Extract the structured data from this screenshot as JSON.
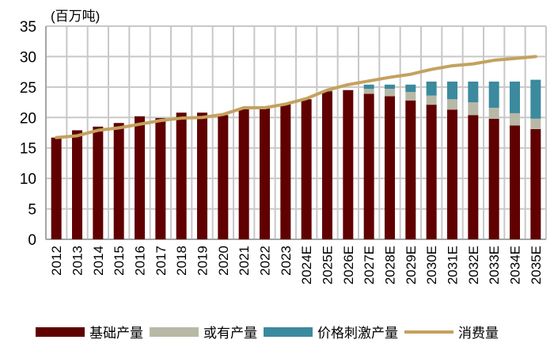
{
  "chart_data": {
    "type": "bar",
    "stacked": true,
    "unit_label": "(百万吨)",
    "categories": [
      "2012",
      "2013",
      "2014",
      "2015",
      "2016",
      "2017",
      "2018",
      "2019",
      "2020",
      "2021",
      "2022",
      "2023",
      "2024E",
      "2025E",
      "2026E",
      "2027E",
      "2028E",
      "2029E",
      "2030E",
      "2031E",
      "2032E",
      "2033E",
      "2034E",
      "2035E"
    ],
    "ylim": [
      0,
      35
    ],
    "yticks": [
      0,
      5,
      10,
      15,
      20,
      25,
      30,
      35
    ],
    "grid": true,
    "legend_position": "bottom",
    "series": [
      {
        "name": "基础产量",
        "type": "bar",
        "color": "#600000",
        "values": [
          16.7,
          17.9,
          18.5,
          19.1,
          20.2,
          19.9,
          20.8,
          20.8,
          20.4,
          21.5,
          21.5,
          22.2,
          23.0,
          24.3,
          24.5,
          23.9,
          23.5,
          22.8,
          22.1,
          21.3,
          20.4,
          19.8,
          18.7,
          18.1
        ]
      },
      {
        "name": "或有产量",
        "type": "bar",
        "color": "#b8b8a6",
        "values": [
          0,
          0,
          0,
          0,
          0,
          0,
          0,
          0,
          0,
          0,
          0,
          0,
          0,
          0,
          0,
          0.8,
          1.2,
          1.4,
          1.5,
          1.7,
          2.1,
          1.8,
          2.0,
          1.7
        ]
      },
      {
        "name": "价格刺激产量",
        "type": "bar",
        "color": "#3b8a9e",
        "values": [
          0,
          0,
          0,
          0,
          0,
          0,
          0,
          0,
          0,
          0,
          0,
          0,
          0,
          0.1,
          0,
          0.7,
          0.7,
          1.2,
          2.3,
          2.9,
          3.4,
          4.3,
          5.2,
          6.4
        ]
      },
      {
        "name": "消费量",
        "type": "line",
        "color": "#c4a15e",
        "values": [
          16.7,
          17.0,
          17.9,
          18.3,
          18.9,
          19.5,
          19.9,
          20.0,
          20.5,
          21.6,
          21.6,
          22.2,
          23.1,
          24.5,
          25.4,
          26.0,
          26.6,
          27.1,
          27.9,
          28.5,
          28.8,
          29.4,
          29.7,
          30.0
        ]
      }
    ]
  }
}
